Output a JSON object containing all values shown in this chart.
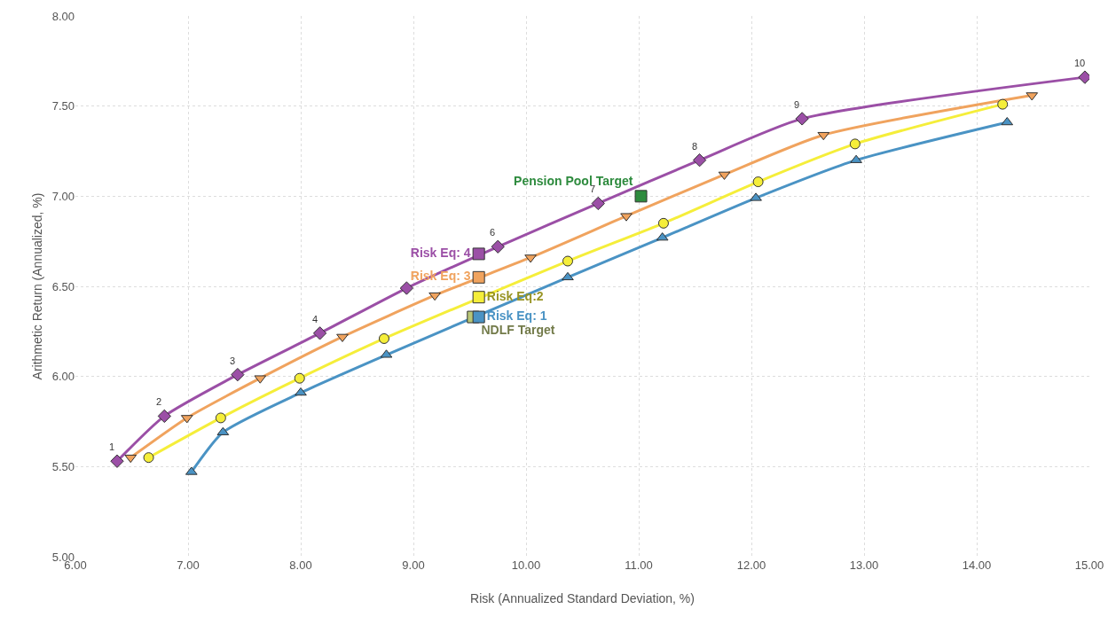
{
  "chart_data": {
    "type": "line",
    "xlabel": "Risk (Annualized Standard Deviation, %)",
    "ylabel": "Arithmetic Return (Annualized, %)",
    "xlim": [
      6,
      15
    ],
    "ylim": [
      5,
      8
    ],
    "xticks": [
      {
        "value": 6,
        "label": "6.00"
      },
      {
        "value": 7,
        "label": "7.00"
      },
      {
        "value": 8,
        "label": "8.00"
      },
      {
        "value": 9,
        "label": "9.00"
      },
      {
        "value": 10,
        "label": "10.00"
      },
      {
        "value": 11,
        "label": "11.00"
      },
      {
        "value": 12,
        "label": "12.00"
      },
      {
        "value": 13,
        "label": "13.00"
      },
      {
        "value": 14,
        "label": "14.00"
      },
      {
        "value": 15,
        "label": "15.00"
      }
    ],
    "yticks": [
      {
        "value": 5,
        "label": "5.00"
      },
      {
        "value": 5.5,
        "label": "5.50"
      },
      {
        "value": 6,
        "label": "6.00"
      },
      {
        "value": 6.5,
        "label": "6.50"
      },
      {
        "value": 7,
        "label": "7.00"
      },
      {
        "value": 7.5,
        "label": "7.50"
      },
      {
        "value": 8,
        "label": "8.00"
      }
    ],
    "grid": true,
    "legend": false,
    "line_style": "solid",
    "series": [
      {
        "marker": "diamond",
        "color": "#9b4fa6",
        "x": [
          6.37,
          6.79,
          7.44,
          8.17,
          8.94,
          9.75,
          10.64,
          11.54,
          12.45,
          14.96
        ],
        "values": [
          5.53,
          5.78,
          6.01,
          6.24,
          6.49,
          6.72,
          6.96,
          7.2,
          7.43,
          7.66
        ]
      },
      {
        "marker": "triangle",
        "color": "#f0a35e",
        "x": [
          6.49,
          6.99,
          7.64,
          8.37,
          9.19,
          10.04,
          10.89,
          11.76,
          12.64,
          14.49
        ],
        "values": [
          5.55,
          5.77,
          5.99,
          6.22,
          6.45,
          6.66,
          6.89,
          7.12,
          7.34,
          7.56
        ]
      },
      {
        "marker": "circle",
        "color": "#f5ee3a",
        "x": [
          6.65,
          7.29,
          7.99,
          8.74,
          10.37,
          11.22,
          12.06,
          12.92,
          14.23
        ],
        "values": [
          5.55,
          5.77,
          5.99,
          6.21,
          6.64,
          6.85,
          7.08,
          7.29,
          7.51
        ]
      },
      {
        "marker": "triangle",
        "color": "#4a93c4",
        "x": [
          7.03,
          7.31,
          8.0,
          8.76,
          10.37,
          11.21,
          12.04,
          12.93,
          14.27
        ],
        "values": [
          5.47,
          5.69,
          5.91,
          6.12,
          6.55,
          6.77,
          6.99,
          7.2,
          7.41
        ]
      },
      {
        "type": "scatter",
        "marker": "square",
        "name": "NDLF Target",
        "color": "#b9c777",
        "x": [
          9.53
        ],
        "values": [
          6.33
        ]
      },
      {
        "type": "scatter",
        "marker": "square",
        "name": "Risk Eq: 4",
        "color": "#9b4fa6",
        "x": [
          9.58
        ],
        "values": [
          6.68
        ]
      },
      {
        "type": "scatter",
        "marker": "square",
        "name": "Risk Eq: 3",
        "color": "#f0a35e",
        "x": [
          9.58
        ],
        "values": [
          6.55
        ]
      },
      {
        "type": "scatter",
        "marker": "square",
        "name": "Risk Eq:2",
        "color": "#f5ee3a",
        "x": [
          9.58
        ],
        "values": [
          6.44
        ]
      },
      {
        "type": "scatter",
        "marker": "square",
        "name": "Risk Eq: 1",
        "color": "#4a93c4",
        "x": [
          9.58
        ],
        "values": [
          6.33
        ]
      },
      {
        "type": "scatter",
        "marker": "square",
        "name": "Pension Pool Target",
        "color": "#2e8b3e",
        "x": [
          11.02
        ],
        "values": [
          7.0
        ]
      }
    ],
    "annotations": [
      {
        "text": "1",
        "x": 6.37,
        "y": 5.53
      },
      {
        "text": "2",
        "x": 6.79,
        "y": 5.78
      },
      {
        "text": "3",
        "x": 7.44,
        "y": 6.01
      },
      {
        "text": "4",
        "x": 8.17,
        "y": 6.24
      },
      {
        "text": "6",
        "x": 9.75,
        "y": 6.72
      },
      {
        "text": "7",
        "x": 10.64,
        "y": 6.96
      },
      {
        "text": "8",
        "x": 11.54,
        "y": 7.2
      },
      {
        "text": "9",
        "x": 12.45,
        "y": 7.43
      },
      {
        "text": "10",
        "x": 14.96,
        "y": 7.66
      }
    ]
  }
}
